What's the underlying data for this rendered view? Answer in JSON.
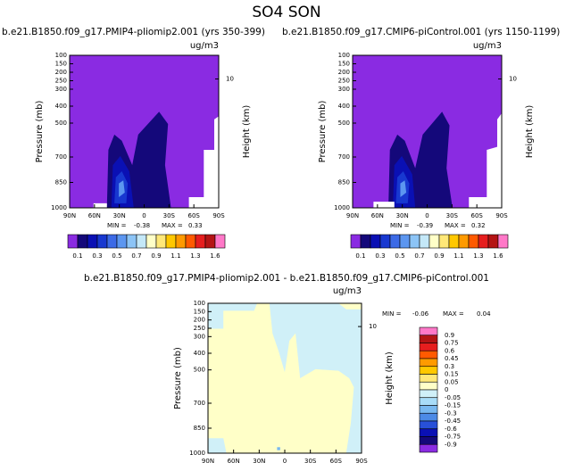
{
  "title": "SO4 SON",
  "chart_data": [
    {
      "type": "contour",
      "title": "b.e21.B1850.f09_g17.PMIP4-pliomip2.001 (yrs 350-399)",
      "units": "ug/m3",
      "ylabel": "Pressure (mb)",
      "y2label": "Height (km)",
      "xlim": [
        90,
        -90
      ],
      "xticks": [
        {
          "value": 90,
          "label": "90N"
        },
        {
          "value": 60,
          "label": "60N"
        },
        {
          "value": 30,
          "label": "30N"
        },
        0,
        {
          "value": -30,
          "label": "30S"
        },
        {
          "value": -60,
          "label": "60S"
        },
        {
          "value": -90,
          "label": "90S"
        }
      ],
      "ylim": [
        1000,
        100
      ],
      "yticks": [
        100,
        150,
        200,
        250,
        300,
        400,
        500,
        700,
        850,
        1000
      ],
      "y2ticks": [
        10
      ],
      "min_label": "MIN =",
      "min": -0.38,
      "max_label": "MAX =",
      "max": 0.33,
      "colorbar": {
        "orientation": "horizontal",
        "levels": [
          0.1,
          null,
          0.3,
          null,
          0.5,
          null,
          0.7,
          null,
          0.9,
          null,
          1.1,
          null,
          1.3,
          null,
          1.6
        ],
        "colors": [
          "#8a2be2",
          "#14087a",
          "#0a10b4",
          "#1838d0",
          "#3c6ae6",
          "#5c96f0",
          "#8cc4f6",
          "#c4e8f8",
          "#ffffc8",
          "#ffe878",
          "#ffc800",
          "#ff9a00",
          "#ff5a00",
          "#e61e1e",
          "#b41414",
          "#ff78c8"
        ]
      }
    },
    {
      "type": "contour",
      "title": "b.e21.B1850.f09_g17.CMIP6-piControl.001 (yrs 1150-1199)",
      "units": "ug/m3",
      "ylabel": "Pressure (mb)",
      "y2label": "Height (km)",
      "xlim": [
        90,
        -90
      ],
      "xticks": [
        {
          "value": 90,
          "label": "90N"
        },
        {
          "value": 60,
          "label": "60N"
        },
        {
          "value": 30,
          "label": "30N"
        },
        0,
        {
          "value": -30,
          "label": "30S"
        },
        {
          "value": -60,
          "label": "60S"
        },
        {
          "value": -90,
          "label": "90S"
        }
      ],
      "ylim": [
        1000,
        100
      ],
      "yticks": [
        100,
        150,
        200,
        250,
        300,
        400,
        500,
        700,
        850,
        1000
      ],
      "y2ticks": [
        10
      ],
      "min_label": "MIN =",
      "min": -0.39,
      "max_label": "MAX =",
      "max": 0.32,
      "colorbar": {
        "orientation": "horizontal",
        "levels": [
          0.1,
          null,
          0.3,
          null,
          0.5,
          null,
          0.7,
          null,
          0.9,
          null,
          1.1,
          null,
          1.3,
          null,
          1.6
        ],
        "colors": [
          "#8a2be2",
          "#14087a",
          "#0a10b4",
          "#1838d0",
          "#3c6ae6",
          "#5c96f0",
          "#8cc4f6",
          "#c4e8f8",
          "#ffffc8",
          "#ffe878",
          "#ffc800",
          "#ff9a00",
          "#ff5a00",
          "#e61e1e",
          "#b41414",
          "#ff78c8"
        ]
      }
    },
    {
      "type": "contour",
      "title": "b.e21.B1850.f09_g17.PMIP4-pliomip2.001 - b.e21.B1850.f09_g17.CMIP6-piControl.001",
      "units": "ug/m3",
      "ylabel": "Pressure (mb)",
      "y2label": "Height (km)",
      "xlim": [
        90,
        -90
      ],
      "xticks": [
        {
          "value": 90,
          "label": "90N"
        },
        {
          "value": 60,
          "label": "60N"
        },
        {
          "value": 30,
          "label": "30N"
        },
        0,
        {
          "value": -30,
          "label": "30S"
        },
        {
          "value": -60,
          "label": "60S"
        },
        {
          "value": -90,
          "label": "90S"
        }
      ],
      "ylim": [
        1000,
        100
      ],
      "yticks": [
        100,
        150,
        200,
        250,
        300,
        400,
        500,
        700,
        850,
        1000
      ],
      "y2ticks": [
        10
      ],
      "min_label": "MIN =",
      "min": -0.06,
      "max_label": "MAX =",
      "max": 0.04,
      "colorbar": {
        "orientation": "vertical",
        "levels": [
          0.9,
          0.75,
          0.6,
          0.45,
          0.3,
          0.15,
          0.05,
          0,
          -0.05,
          -0.15,
          -0.3,
          -0.45,
          -0.6,
          -0.75,
          -0.9
        ],
        "colors": [
          "#ff78c8",
          "#b41414",
          "#e61e1e",
          "#ff5a00",
          "#ff9a00",
          "#ffc800",
          "#ffe878",
          "#ffffc8",
          "#d0f0f8",
          "#a8dcf8",
          "#78b8f0",
          "#4c8ae6",
          "#2850d8",
          "#0a10b4",
          "#14087a",
          "#8a2be2"
        ]
      }
    }
  ]
}
